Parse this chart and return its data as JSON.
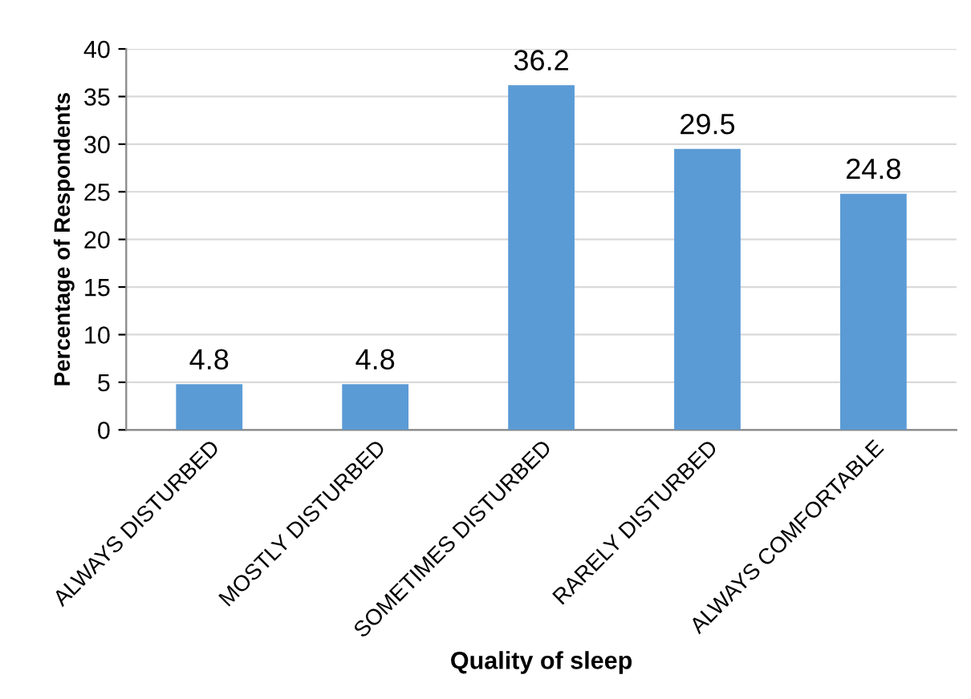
{
  "chart_data": {
    "type": "bar",
    "xlabel": "Quality of sleep",
    "ylabel": "Percentage of Respondents",
    "categories": [
      "ALWAYS DISTURBED",
      "MOSTLY DISTURBED",
      "SOMETIMES DISTURBED",
      "RARELY DISTURBED",
      "ALWAYS COMFORTABLE"
    ],
    "values": [
      4.8,
      4.8,
      36.2,
      29.5,
      24.8
    ],
    "color": "#5b9bd5",
    "ylim": [
      0,
      40
    ],
    "yticks": [
      0,
      5,
      10,
      15,
      20,
      25,
      30,
      35,
      40
    ],
    "grid": "y",
    "data_labels": true,
    "legend": false
  }
}
